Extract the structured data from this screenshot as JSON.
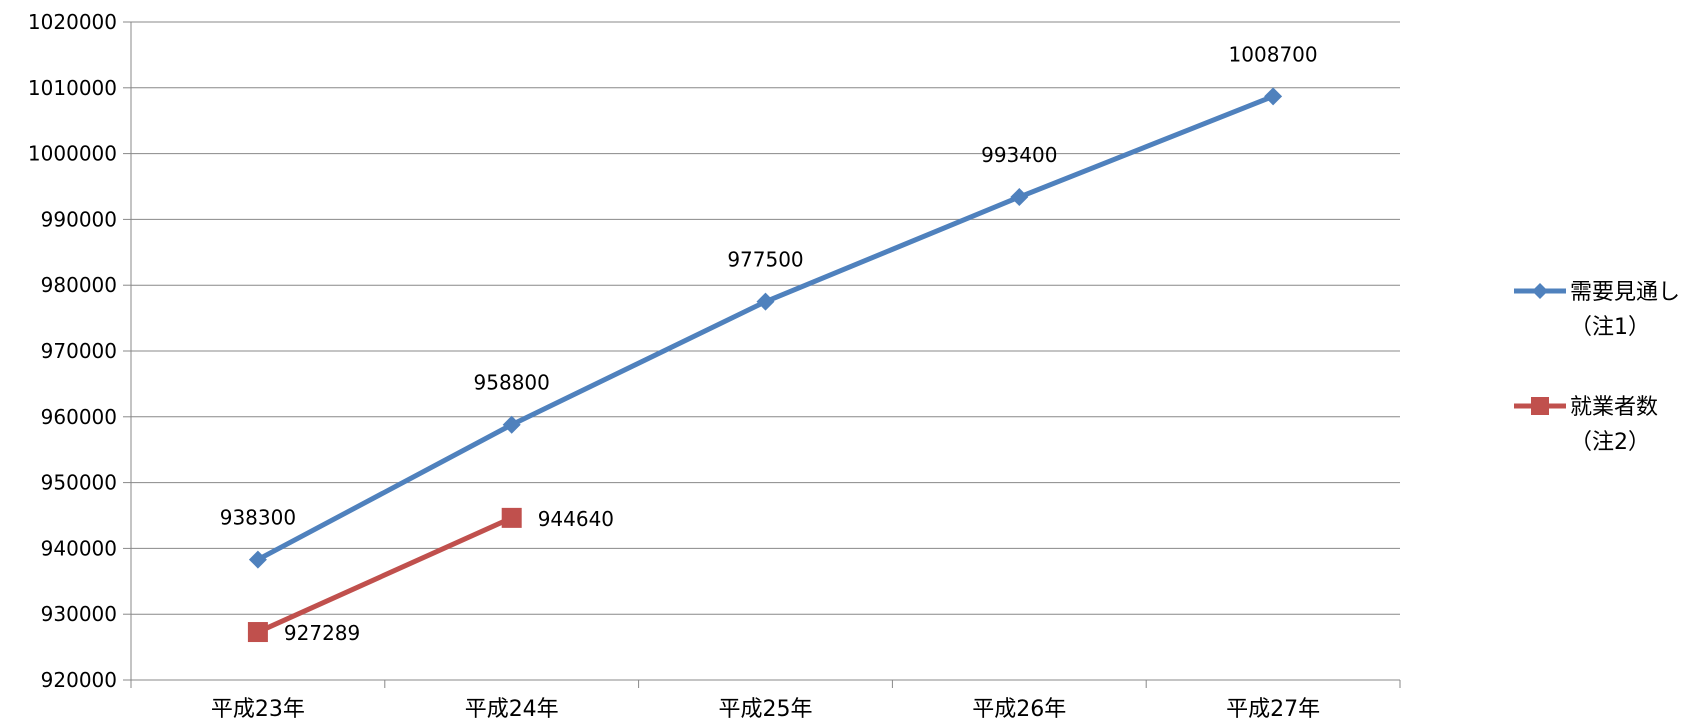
{
  "chart_data": {
    "type": "line",
    "categories": [
      "平成23年",
      "平成24年",
      "平成25年",
      "平成26年",
      "平成27年"
    ],
    "ylim": [
      920000,
      1020000
    ],
    "yticks": [
      920000,
      930000,
      940000,
      950000,
      960000,
      970000,
      980000,
      990000,
      1000000,
      1010000,
      1020000
    ],
    "grid": true,
    "legend_position": "right",
    "series": [
      {
        "name": "需要見通し（注1）",
        "legend_lines": [
          "需要見通し",
          "（注1）"
        ],
        "marker": "diamond",
        "color": "#4F81BD",
        "values": [
          938300,
          958800,
          977500,
          993400,
          1008700
        ]
      },
      {
        "name": "就業者数（注2）",
        "legend_lines": [
          "就業者数",
          "（注2）"
        ],
        "marker": "square",
        "color": "#C0504D",
        "values": [
          927289,
          944640,
          null,
          null,
          null
        ]
      }
    ]
  }
}
